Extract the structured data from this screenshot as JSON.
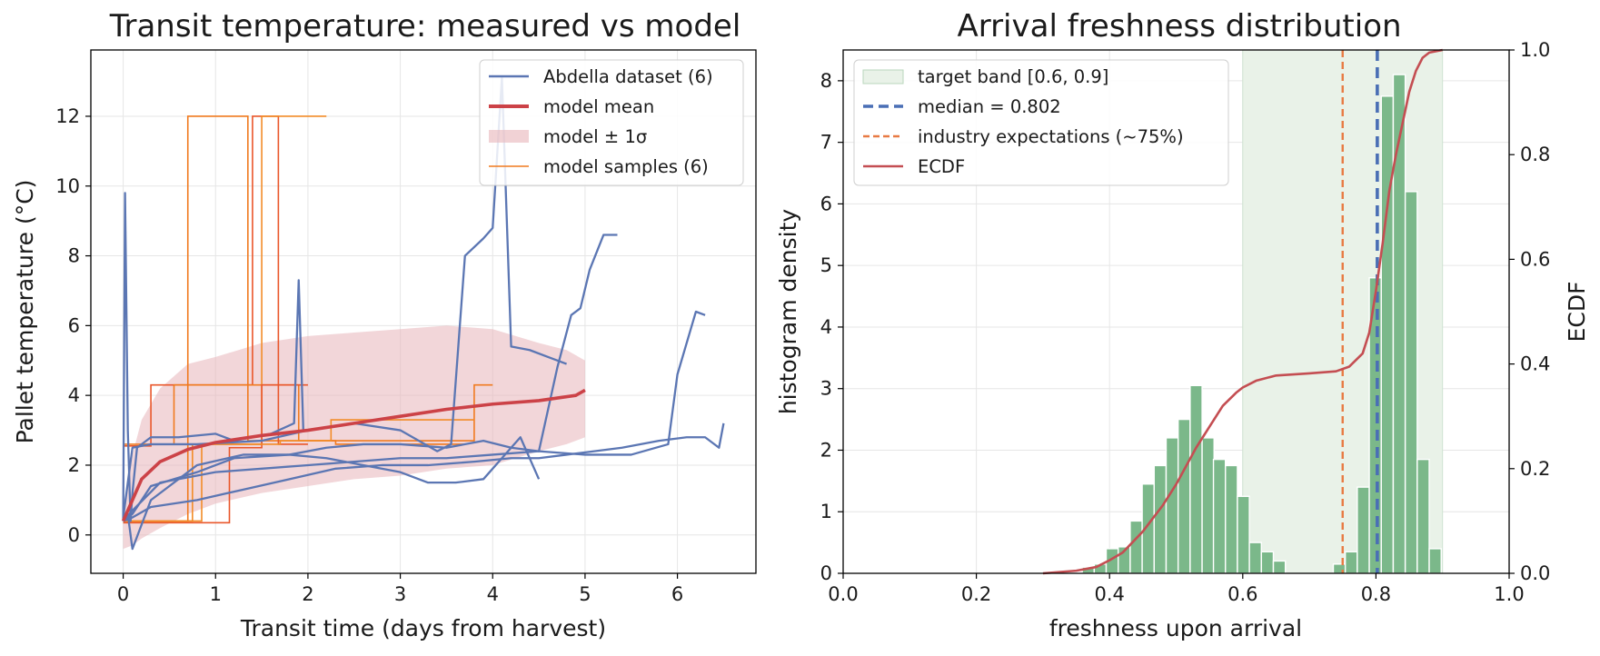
{
  "chart_data": [
    {
      "type": "line",
      "title": "Transit temperature: measured vs model",
      "xlabel": "Transit time (days from harvest)",
      "ylabel": "Pallet temperature (°C)",
      "xlim": [
        -0.35,
        6.85
      ],
      "ylim": [
        -1.1,
        13.9
      ],
      "xticks": [
        0,
        1,
        2,
        3,
        4,
        5,
        6
      ],
      "yticks": [
        0,
        2,
        4,
        6,
        8,
        10,
        12
      ],
      "grid": true,
      "legend_position": "top-right",
      "legend": [
        "Abdella dataset (6)",
        "model mean",
        "model ± 1σ",
        "model samples (6)"
      ],
      "colors": {
        "measured": "#5b76b3",
        "mean": "#cc4247",
        "band": "#e8b4b9",
        "samples": [
          "#f07a1f",
          "#e9572b",
          "#f28c28"
        ]
      },
      "measured_series": [
        {
          "x": [
            0.0,
            0.02,
            0.05,
            0.08,
            0.1,
            0.15,
            0.3,
            0.6,
            1.0,
            1.2,
            1.6,
            1.85,
            1.9,
            1.95
          ],
          "y": [
            0.4,
            9.8,
            3.0,
            0.4,
            1.2,
            2.5,
            2.8,
            2.8,
            2.9,
            2.7,
            2.9,
            3.2,
            7.3,
            3.0
          ]
        },
        {
          "x": [
            0.0,
            0.1,
            0.3,
            0.8,
            1.5,
            2.0,
            2.5,
            3.0,
            3.4,
            3.55,
            3.7,
            3.9,
            4.0,
            4.1,
            4.2,
            4.4,
            4.6,
            4.8
          ],
          "y": [
            0.5,
            2.5,
            2.6,
            2.6,
            2.7,
            3.0,
            3.2,
            3.0,
            2.4,
            2.6,
            8.0,
            8.5,
            8.8,
            13.1,
            5.4,
            5.3,
            5.1,
            4.9
          ]
        },
        {
          "x": [
            0.0,
            0.1,
            0.3,
            0.8,
            1.2,
            1.8,
            2.2,
            2.6,
            3.0,
            3.5,
            3.9,
            4.2,
            4.5,
            4.7,
            4.85,
            4.95,
            5.05,
            5.2,
            5.35
          ],
          "y": [
            0.4,
            0.6,
            1.4,
            1.8,
            2.2,
            2.3,
            2.5,
            2.6,
            2.6,
            2.5,
            2.7,
            2.5,
            2.4,
            4.8,
            6.3,
            6.5,
            7.6,
            8.6,
            8.6
          ]
        },
        {
          "x": [
            0.0,
            0.1,
            0.4,
            1.0,
            1.5,
            2.0,
            2.5,
            3.0,
            3.5,
            4.0,
            4.5,
            5.0,
            5.5,
            5.9,
            6.0,
            6.2,
            6.3
          ],
          "y": [
            0.4,
            0.7,
            1.5,
            1.8,
            1.9,
            2.0,
            2.1,
            2.2,
            2.2,
            2.3,
            2.4,
            2.3,
            2.3,
            2.6,
            4.6,
            6.4,
            6.3
          ]
        },
        {
          "x": [
            0.0,
            0.1,
            0.3,
            0.8,
            1.3,
            1.8,
            2.3,
            2.8,
            3.3,
            3.8,
            4.2,
            4.5,
            4.8,
            5.1,
            5.4,
            5.8,
            6.1,
            6.3,
            6.45,
            6.5
          ],
          "y": [
            0.4,
            0.5,
            0.8,
            1.0,
            1.3,
            1.6,
            1.9,
            2.0,
            2.0,
            2.1,
            2.2,
            2.2,
            2.3,
            2.4,
            2.5,
            2.7,
            2.8,
            2.8,
            2.5,
            3.2
          ]
        },
        {
          "x": [
            0.0,
            0.05,
            0.1,
            0.3,
            0.8,
            1.3,
            1.8,
            2.2,
            2.6,
            3.0,
            3.3,
            3.6,
            3.9,
            4.1,
            4.3,
            4.5
          ],
          "y": [
            0.4,
            0.6,
            -0.4,
            1.0,
            2.0,
            2.3,
            2.3,
            2.2,
            2.0,
            1.8,
            1.5,
            1.5,
            1.6,
            2.2,
            2.8,
            1.6
          ]
        }
      ],
      "model_mean": {
        "x": [
          0.0,
          0.1,
          0.2,
          0.4,
          0.7,
          1.0,
          1.5,
          2.0,
          2.5,
          3.0,
          3.5,
          4.0,
          4.5,
          4.9,
          5.0
        ],
        "y": [
          0.4,
          1.0,
          1.6,
          2.1,
          2.45,
          2.65,
          2.85,
          3.0,
          3.2,
          3.4,
          3.6,
          3.75,
          3.85,
          4.0,
          4.15
        ]
      },
      "model_band": {
        "x": [
          0.0,
          0.1,
          0.2,
          0.4,
          0.7,
          1.0,
          1.5,
          2.0,
          2.5,
          3.0,
          3.5,
          4.0,
          4.5,
          4.8,
          5.0
        ],
        "upper": [
          0.5,
          2.3,
          3.3,
          4.2,
          4.9,
          5.1,
          5.5,
          5.7,
          5.8,
          5.9,
          6.0,
          5.9,
          5.5,
          5.3,
          5.0
        ],
        "lower": [
          -0.4,
          -0.3,
          -0.1,
          0.2,
          0.6,
          0.9,
          1.2,
          1.4,
          1.6,
          1.7,
          1.9,
          2.0,
          2.4,
          2.6,
          2.8
        ]
      },
      "model_samples": [
        {
          "x": [
            0.0,
            0.7,
            0.7,
            1.35,
            1.35,
            3.8,
            3.8,
            4.0
          ],
          "y": [
            0.4,
            0.4,
            12.0,
            12.0,
            2.7,
            2.7,
            4.3,
            4.3
          ]
        },
        {
          "x": [
            0.0,
            0.3,
            0.3,
            1.4,
            1.4,
            1.68,
            1.68,
            2.0
          ],
          "y": [
            2.55,
            2.55,
            4.3,
            4.3,
            12.0,
            12.0,
            2.6,
            2.6
          ]
        },
        {
          "x": [
            0.0,
            0.85,
            0.85,
            1.5,
            1.5,
            2.2
          ],
          "y": [
            0.4,
            0.4,
            2.6,
            2.6,
            12.0,
            12.0
          ]
        },
        {
          "x": [
            0.0,
            0.55,
            0.55,
            1.9,
            1.9,
            2.3,
            2.3,
            3.7
          ],
          "y": [
            2.6,
            2.6,
            4.3,
            4.3,
            2.7,
            2.7,
            2.6,
            2.6
          ]
        },
        {
          "x": [
            0.0,
            1.15,
            1.15,
            1.5,
            1.5,
            2.0
          ],
          "y": [
            0.35,
            0.35,
            2.5,
            2.5,
            4.3,
            4.3
          ]
        },
        {
          "x": [
            0.0,
            0.75,
            0.75,
            1.7,
            1.7,
            2.25,
            2.25,
            3.8
          ],
          "y": [
            0.4,
            0.4,
            2.6,
            2.6,
            2.7,
            2.7,
            3.3,
            3.3
          ]
        }
      ]
    },
    {
      "type": "bar",
      "title": "Arrival freshness distribution",
      "xlabel": "freshness upon arrival",
      "ylabel": "histogram density",
      "y2label": "ECDF",
      "xlim": [
        0.0,
        1.0
      ],
      "ylim": [
        0.0,
        8.5
      ],
      "y2lim": [
        0.0,
        1.0
      ],
      "xticks": [
        0.0,
        0.2,
        0.4,
        0.6,
        0.8,
        1.0
      ],
      "yticks": [
        0,
        1,
        2,
        3,
        4,
        5,
        6,
        7,
        8
      ],
      "y2ticks": [
        0.0,
        0.2,
        0.4,
        0.6,
        0.8,
        1.0
      ],
      "grid": true,
      "legend_position": "top-left",
      "legend": [
        "target band [0.6, 0.9]",
        "median = 0.802",
        "industry expectations (~75%)",
        "ECDF"
      ],
      "colors": {
        "bars": "#7bb88a",
        "band": "#e9f2e8",
        "median": "#4a6fb5",
        "industry": "#e87a43",
        "ecdf": "#c44e52"
      },
      "target_band": [
        0.6,
        0.9
      ],
      "median": 0.802,
      "industry_expectation": 0.75,
      "bin_width": 0.01795,
      "bins": [
        {
          "x": 0.359,
          "v": 0.1
        },
        {
          "x": 0.377,
          "v": 0.15
        },
        {
          "x": 0.395,
          "v": 0.4
        },
        {
          "x": 0.413,
          "v": 0.43
        },
        {
          "x": 0.431,
          "v": 0.85
        },
        {
          "x": 0.449,
          "v": 1.45
        },
        {
          "x": 0.467,
          "v": 1.75
        },
        {
          "x": 0.485,
          "v": 2.2
        },
        {
          "x": 0.503,
          "v": 2.5
        },
        {
          "x": 0.521,
          "v": 3.05
        },
        {
          "x": 0.539,
          "v": 2.2
        },
        {
          "x": 0.556,
          "v": 1.85
        },
        {
          "x": 0.574,
          "v": 1.75
        },
        {
          "x": 0.592,
          "v": 1.25
        },
        {
          "x": 0.61,
          "v": 0.5
        },
        {
          "x": 0.628,
          "v": 0.35
        },
        {
          "x": 0.646,
          "v": 0.2
        },
        {
          "x": 0.736,
          "v": 0.15
        },
        {
          "x": 0.754,
          "v": 0.35
        },
        {
          "x": 0.772,
          "v": 1.4
        },
        {
          "x": 0.79,
          "v": 4.8
        },
        {
          "x": 0.808,
          "v": 7.75
        },
        {
          "x": 0.826,
          "v": 8.1
        },
        {
          "x": 0.844,
          "v": 6.2
        },
        {
          "x": 0.862,
          "v": 1.85
        },
        {
          "x": 0.88,
          "v": 0.4
        }
      ],
      "ecdf": {
        "x": [
          0.3,
          0.35,
          0.38,
          0.4,
          0.42,
          0.45,
          0.48,
          0.5,
          0.53,
          0.55,
          0.57,
          0.59,
          0.6,
          0.62,
          0.65,
          0.7,
          0.74,
          0.76,
          0.78,
          0.79,
          0.8,
          0.81,
          0.82,
          0.83,
          0.84,
          0.85,
          0.86,
          0.87,
          0.88,
          0.9
        ],
        "y": [
          0.0,
          0.005,
          0.012,
          0.025,
          0.04,
          0.08,
          0.13,
          0.17,
          0.24,
          0.28,
          0.32,
          0.345,
          0.355,
          0.368,
          0.378,
          0.382,
          0.386,
          0.395,
          0.42,
          0.46,
          0.54,
          0.63,
          0.73,
          0.8,
          0.86,
          0.92,
          0.96,
          0.985,
          0.995,
          1.0
        ]
      }
    }
  ]
}
